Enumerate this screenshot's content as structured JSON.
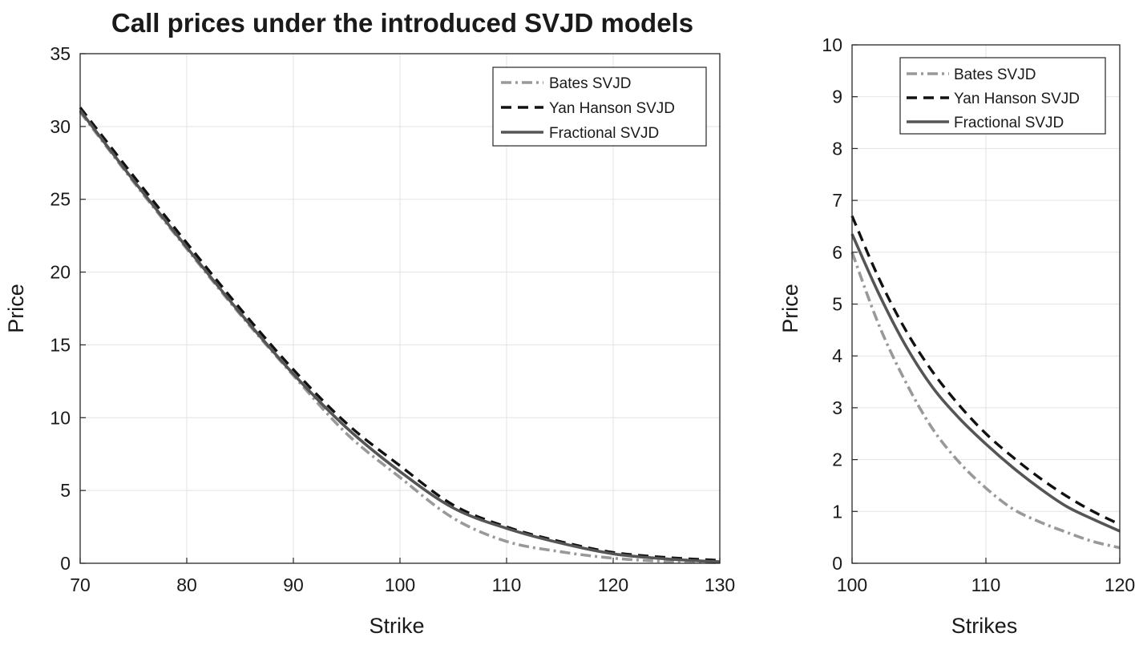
{
  "chart_data": [
    {
      "type": "line",
      "title": "Call prices under the introduced SVJD models",
      "xlabel": "Strike",
      "ylabel": "Price",
      "xlim": [
        70,
        130
      ],
      "ylim": [
        0,
        35
      ],
      "xticks": [
        "70",
        "80",
        "90",
        "100",
        "110",
        "120",
        "130"
      ],
      "yticks": [
        "0",
        "5",
        "10",
        "15",
        "20",
        "25",
        "30",
        "35"
      ],
      "grid": true,
      "legend_position": "top-right",
      "x": [
        70,
        75,
        80,
        85,
        90,
        95,
        100,
        105,
        110,
        115,
        120,
        125,
        130
      ],
      "series": [
        {
          "name": "Bates SVJD",
          "style": "dash-dot",
          "color": "#999999",
          "values": [
            31.0,
            26.2,
            21.6,
            17.1,
            12.9,
            8.9,
            5.9,
            3.1,
            1.5,
            0.8,
            0.35,
            0.12,
            0.05
          ]
        },
        {
          "name": "Yan Hanson SVJD",
          "style": "dashed",
          "color": "#111111",
          "values": [
            31.3,
            26.6,
            22.0,
            17.5,
            13.3,
            9.6,
            6.7,
            4.0,
            2.5,
            1.5,
            0.75,
            0.4,
            0.2
          ]
        },
        {
          "name": "Fractional SVJD",
          "style": "solid",
          "color": "#555555",
          "values": [
            31.1,
            26.3,
            21.7,
            17.2,
            13.0,
            9.3,
            6.3,
            3.8,
            2.4,
            1.4,
            0.65,
            0.3,
            0.1
          ]
        }
      ]
    },
    {
      "type": "line",
      "title": "",
      "xlabel": "Strikes",
      "ylabel": "Price",
      "xlim": [
        100,
        120
      ],
      "ylim": [
        0,
        10
      ],
      "xticks": [
        "100",
        "110",
        "120"
      ],
      "yticks": [
        "0",
        "1",
        "2",
        "3",
        "4",
        "5",
        "6",
        "7",
        "8",
        "9",
        "10"
      ],
      "grid": true,
      "legend_position": "top-right",
      "x": [
        100,
        102,
        104,
        106,
        108,
        110,
        112,
        114,
        116,
        118,
        120
      ],
      "series": [
        {
          "name": "Bates SVJD",
          "style": "dash-dot",
          "color": "#999999",
          "values": [
            6.0,
            4.6,
            3.5,
            2.6,
            1.95,
            1.45,
            1.05,
            0.8,
            0.6,
            0.42,
            0.3
          ]
        },
        {
          "name": "Yan Hanson SVJD",
          "style": "dashed",
          "color": "#111111",
          "values": [
            6.7,
            5.5,
            4.5,
            3.7,
            3.05,
            2.5,
            2.05,
            1.65,
            1.3,
            1.0,
            0.75
          ]
        },
        {
          "name": "Fractional SVJD",
          "style": "solid",
          "color": "#555555",
          "values": [
            6.35,
            5.2,
            4.2,
            3.4,
            2.8,
            2.3,
            1.85,
            1.45,
            1.1,
            0.85,
            0.62
          ]
        }
      ]
    }
  ]
}
